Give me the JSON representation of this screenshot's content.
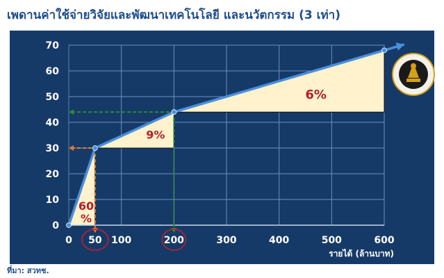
{
  "page": {
    "title": "เพดานค่าใช้จ่ายวิจัยและพัฒนาเทคโนโลยี และนวัตกรรม (3 เท่า)",
    "source": "ที่มา:  สวทช."
  },
  "colors": {
    "background_panel": "#163a68",
    "curve": "#4a8fdc",
    "fill": "#fff2cc",
    "guide_orange": "#e07a2e",
    "guide_green": "#2e8b2e",
    "percent_text": "#b3202a",
    "logo": "#d4a017"
  },
  "chart_data": {
    "type": "line",
    "title": "",
    "xlabel": "รายได้ (ล้านบาท)",
    "ylabel": "",
    "xlim": [
      0,
      600
    ],
    "ylim": [
      0,
      70
    ],
    "x_ticks": [
      0,
      50,
      100,
      200,
      300,
      400,
      500,
      600
    ],
    "y_ticks": [
      0,
      10,
      20,
      30,
      40,
      50,
      60,
      70
    ],
    "grid": true,
    "series": [
      {
        "x": [
          0,
          50,
          200,
          600
        ],
        "values": [
          0,
          30,
          44,
          68
        ]
      }
    ],
    "shaded_regions": [
      {
        "label": "60%",
        "x_from": 0,
        "x_to": 50
      },
      {
        "label": "9%",
        "x_from": 50,
        "x_to": 200
      },
      {
        "label": "6%",
        "x_from": 200,
        "x_to": 600
      }
    ],
    "guides": [
      {
        "x": 50,
        "y": 30
      },
      {
        "x": 200,
        "y": 44
      }
    ],
    "highlighted_ticks": [
      "50",
      "200"
    ]
  }
}
